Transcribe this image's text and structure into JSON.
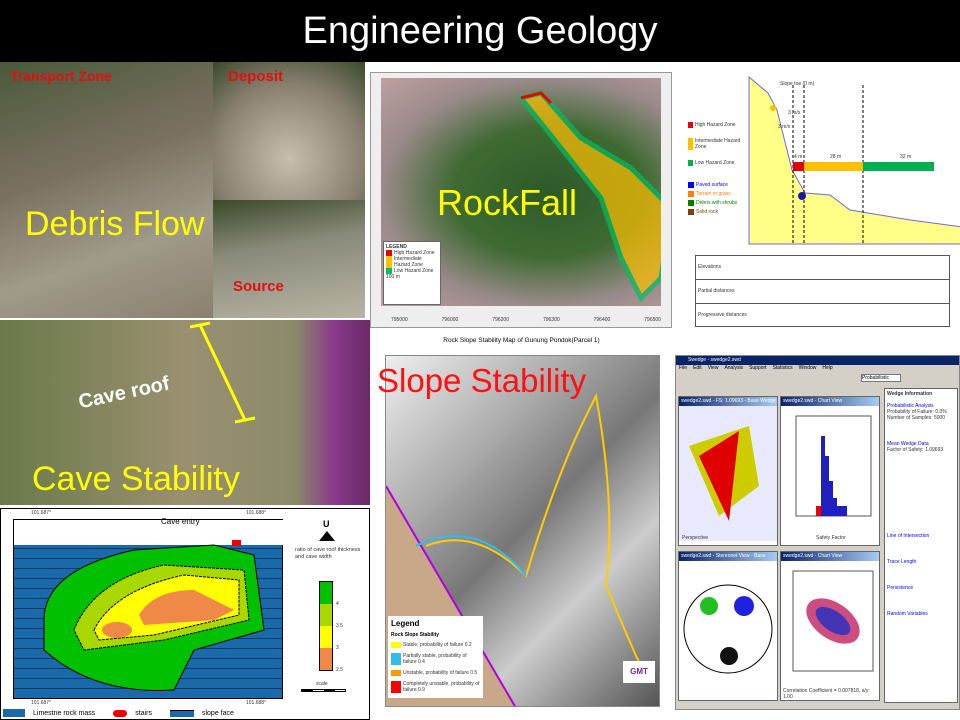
{
  "title": "Engineering Geology",
  "debris": {
    "transport": "Transport Zone",
    "deposit": "Deposit",
    "source": "Source",
    "caption": "Debris Flow"
  },
  "rockfall": {
    "caption": "RockFall",
    "legend_title": "LEGEND",
    "legend": [
      "High Hazard Zone",
      "Intermediate Hazard Zone",
      "Low Hazard Zone"
    ],
    "scale": "100 m",
    "x_ticks": [
      "795000",
      "796000",
      "796200",
      "796300",
      "796400",
      "796500"
    ]
  },
  "profile": {
    "slope_toe": "Slope toe (0 m)",
    "v1": "3 m/s",
    "v2": "3 m/s",
    "zones": [
      {
        "label": "4 m",
        "color": "#e00000"
      },
      {
        "label": "28 m",
        "color": "#ffc000"
      },
      {
        "label": "32 m",
        "color": "#00b050"
      }
    ],
    "legend_zones": [
      "High Hazard Zone",
      "Intermediate Hazard Zone",
      "Low Hazard Zone"
    ],
    "legend_surface": [
      {
        "label": "Paved surface",
        "color": "#0000ff"
      },
      {
        "label": "Terrain or grass",
        "color": "#ff8000"
      },
      {
        "label": "Debris with shrubs",
        "color": "#008000"
      },
      {
        "label": "Solid rock",
        "color": "#804000"
      }
    ],
    "rows": [
      "Elevations",
      "Partial distances",
      "Progressive distances"
    ]
  },
  "cave": {
    "roof": "Cave roof",
    "caption": "Cave Stability"
  },
  "cavemap": {
    "coord_tl": "101.687°",
    "coord_tr": "101.688°",
    "coord_bl": "101.687°",
    "coord_br": "101.688°",
    "entry": "Cave entry",
    "north": "U",
    "ratio_title": "ratio of cave roof thickness and cave width",
    "ratio_ticks": [
      "4",
      "3.5",
      "3",
      "2.5"
    ],
    "scale": "scale",
    "legend": [
      "Limestne rock mass",
      "stairs",
      "slope face"
    ]
  },
  "slope": {
    "map_title": "Rock Slope Stability Map of Gunung Pondok(Parcel 1)",
    "caption": "Slope Stability",
    "legend_title": "Legend",
    "legend_sub": "Rock Slope Stability",
    "legend": [
      {
        "label": "Stable, probability of failure 0.2",
        "color": "#ffff00"
      },
      {
        "label": "Partially stable, probability of failure 0.4",
        "color": "#33bbee"
      },
      {
        "label": "Unstable, probability of failure 0.5",
        "color": "#ff9900"
      },
      {
        "label": "Completely unstable, probability of failure 0.9",
        "color": "#ff0000"
      }
    ],
    "logo": "GMT"
  },
  "software": {
    "title": "Swedge - swedge2.swd",
    "menu": [
      "File",
      "Edit",
      "View",
      "Analysis",
      "Support",
      "Statistics",
      "Window",
      "Help"
    ],
    "select": "Probabilistic",
    "panes": [
      "swedge2.swd - FS: 1.09693 - Base Wedge",
      "swedge2.swd - Chart View",
      "swedge2.swd - Stereonet View - Base Wedge",
      "swedge2.swd - Chart View"
    ],
    "perspective": "Perspective",
    "info_title": "Wedge Information",
    "info": [
      "Probabilistic Analysis",
      "Probability of Failure: 0.0%",
      "Number of Samples: 5000",
      "Mean Wedge Data",
      "Factor of Safety: 1.09693",
      "Line of Intersection",
      "Trace Length",
      "Persistence",
      "Random Variables"
    ],
    "x_axis": "Safety Factor",
    "corr": "Correlation Coefficient = 0.007818, a/y: 1.00"
  }
}
